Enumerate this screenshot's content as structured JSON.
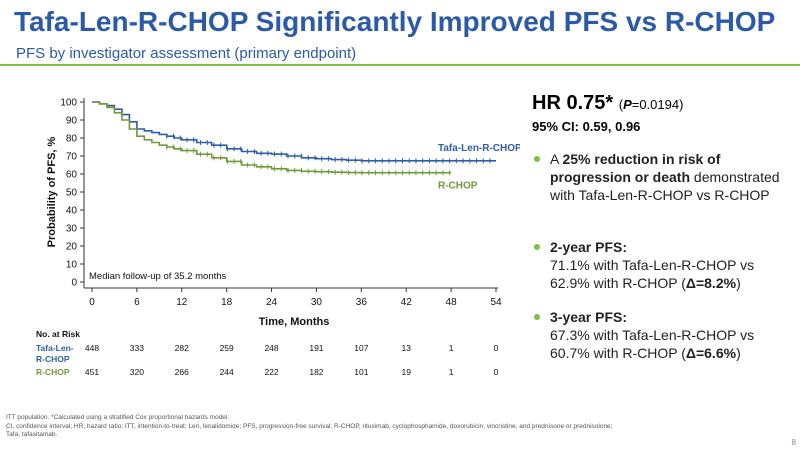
{
  "slide": {
    "title": "Tafa-Len-R-CHOP Significantly Improved PFS vs R-CHOP",
    "subtitle": "PFS by investigator assessment (primary endpoint)",
    "page_number": "8",
    "footnote_lines": [
      "ITT population. *Calculated using a stratified Cox proportional hazards model.",
      "CI, confidence interval; HR, hazard ratio; ITT, intention-to-treat; Len, lenalidomide; PFS, progression-free survival; R-CHOP, rituximab, cyclophosphamide, doxorubicin, vincristine, and prednisone or prednisolone;",
      "Tafa, tafasitamab."
    ]
  },
  "hr": {
    "value": "HR 0.75*",
    "p_open": "(",
    "p_label": "P",
    "p_value": "=0.0194)",
    "ci": "95% CI: 0.59, 0.96"
  },
  "bullets": [
    {
      "bold": "25% reduction in risk of progression or death",
      "pre": "A ",
      "post": " demonstrated with Tafa-Len-R-CHOP vs R-CHOP"
    },
    {
      "bold": "2-year PFS:",
      "line2": "71.1% with Tafa-Len-R-CHOP vs",
      "line3_pre": "62.9% with R-CHOP (",
      "line3_bold": "Δ=8.2%",
      "line3_post": ")"
    },
    {
      "bold": "3-year PFS:",
      "line2": "67.3% with Tafa-Len-R-CHOP vs",
      "line3_pre": "60.7% with R-CHOP (",
      "line3_bold": "Δ=6.6%",
      "line3_post": ")"
    }
  ],
  "colors": {
    "tafa": "#2e5fa6",
    "rchop": "#6f9a3a",
    "accent": "#7cc242",
    "title": "#2b5aa8"
  },
  "chart_data": {
    "type": "line",
    "xlabel": "Time, Months",
    "ylabel": "Probability of PFS, %",
    "xlim": [
      0,
      54
    ],
    "ylim": [
      0,
      100
    ],
    "x_ticks": [
      0,
      6,
      12,
      18,
      24,
      30,
      36,
      42,
      48,
      54
    ],
    "y_ticks": [
      0,
      10,
      20,
      30,
      40,
      50,
      60,
      70,
      80,
      90,
      100
    ],
    "annotation": "Median follow-up of 35.2 months",
    "series": [
      {
        "name": "Tafa-Len-R-CHOP",
        "color": "#2e5fa6",
        "x": [
          0,
          1,
          2,
          3,
          4,
          5,
          6,
          7,
          8,
          9,
          10,
          11,
          12,
          14,
          16,
          18,
          20,
          22,
          24,
          26,
          28,
          30,
          32,
          34,
          36,
          40,
          44,
          50,
          54
        ],
        "y": [
          100,
          99,
          98,
          96,
          93,
          89,
          85,
          84,
          83,
          82,
          81,
          80,
          79,
          77.5,
          76,
          74,
          72.5,
          71.5,
          71.1,
          70,
          69,
          68.5,
          68,
          67.7,
          67.3,
          67.3,
          67.3,
          67.3,
          67.3
        ]
      },
      {
        "name": "R-CHOP",
        "color": "#6f9a3a",
        "x": [
          0,
          1,
          2,
          3,
          4,
          5,
          6,
          7,
          8,
          9,
          10,
          11,
          12,
          14,
          16,
          18,
          20,
          22,
          24,
          26,
          28,
          30,
          32,
          34,
          36,
          40,
          44,
          48
        ],
        "y": [
          100,
          99,
          97,
          94,
          90,
          85,
          81,
          79,
          77.5,
          76,
          75,
          74,
          73,
          71,
          69,
          67,
          65,
          64,
          62.9,
          62,
          61.5,
          61.3,
          61,
          60.8,
          60.7,
          60.7,
          60.7,
          60.7
        ]
      }
    ],
    "at_risk": {
      "header": "No. at Risk",
      "rows": [
        {
          "label_lines": [
            "Tafa-Len-",
            "R-CHOP"
          ],
          "color": "#2e5fa6",
          "values": [
            "448",
            "333",
            "282",
            "259",
            "248",
            "191",
            "107",
            "13",
            "1",
            "0"
          ]
        },
        {
          "label_lines": [
            "R-CHOP"
          ],
          "color": "#6f9a3a",
          "values": [
            "451",
            "320",
            "266",
            "244",
            "222",
            "182",
            "101",
            "19",
            "1",
            "0"
          ]
        }
      ]
    }
  }
}
